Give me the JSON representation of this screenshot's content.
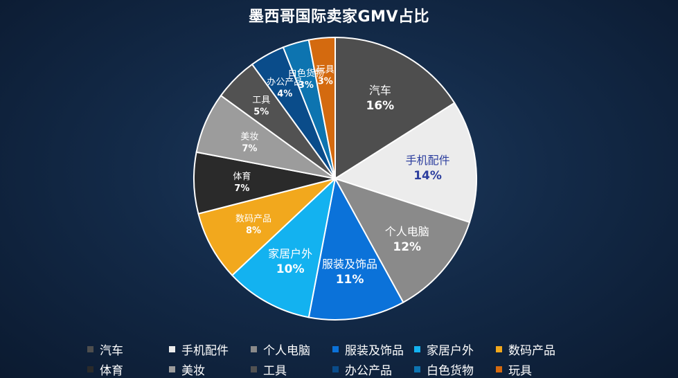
{
  "chart_data": {
    "type": "pie",
    "title": "墨西哥国际卖家GMV占比",
    "legend_position": "bottom",
    "slices": [
      {
        "label": "汽车",
        "value": 16,
        "display": "16%",
        "color": "#4e4e4e",
        "label_color": "#ffffff"
      },
      {
        "label": "手机配件",
        "value": 14,
        "display": "14%",
        "color": "#ececec",
        "label_color": "#2c3e9e"
      },
      {
        "label": "个人电脑",
        "value": 12,
        "display": "12%",
        "color": "#8a8a8a",
        "label_color": "#ffffff"
      },
      {
        "label": "服装及饰品",
        "value": 11,
        "display": "11%",
        "color": "#0b72d9",
        "label_color": "#ffffff"
      },
      {
        "label": "家居户外",
        "value": 10,
        "display": "10%",
        "color": "#13b2f0",
        "label_color": "#ffffff"
      },
      {
        "label": "数码产品",
        "value": 8,
        "display": "8%",
        "color": "#f2a81d",
        "label_color": "#ffffff"
      },
      {
        "label": "体育",
        "value": 7,
        "display": "7%",
        "color": "#2a2a2a",
        "label_color": "#ffffff"
      },
      {
        "label": "美妆",
        "value": 7,
        "display": "7%",
        "color": "#9c9c9c",
        "label_color": "#ffffff"
      },
      {
        "label": "工具",
        "value": 5,
        "display": "5%",
        "color": "#525252",
        "label_color": "#ffffff"
      },
      {
        "label": "办公产品",
        "value": 4,
        "display": "4%",
        "color": "#0a4c8a",
        "label_color": "#ffffff"
      },
      {
        "label": "白色货物",
        "value": 3,
        "display": "3%",
        "color": "#0d74b0",
        "label_color": "#ffffff"
      },
      {
        "label": "玩具",
        "value": 3,
        "display": "3%",
        "color": "#d46a0f",
        "label_color": "#ffffff"
      }
    ]
  }
}
